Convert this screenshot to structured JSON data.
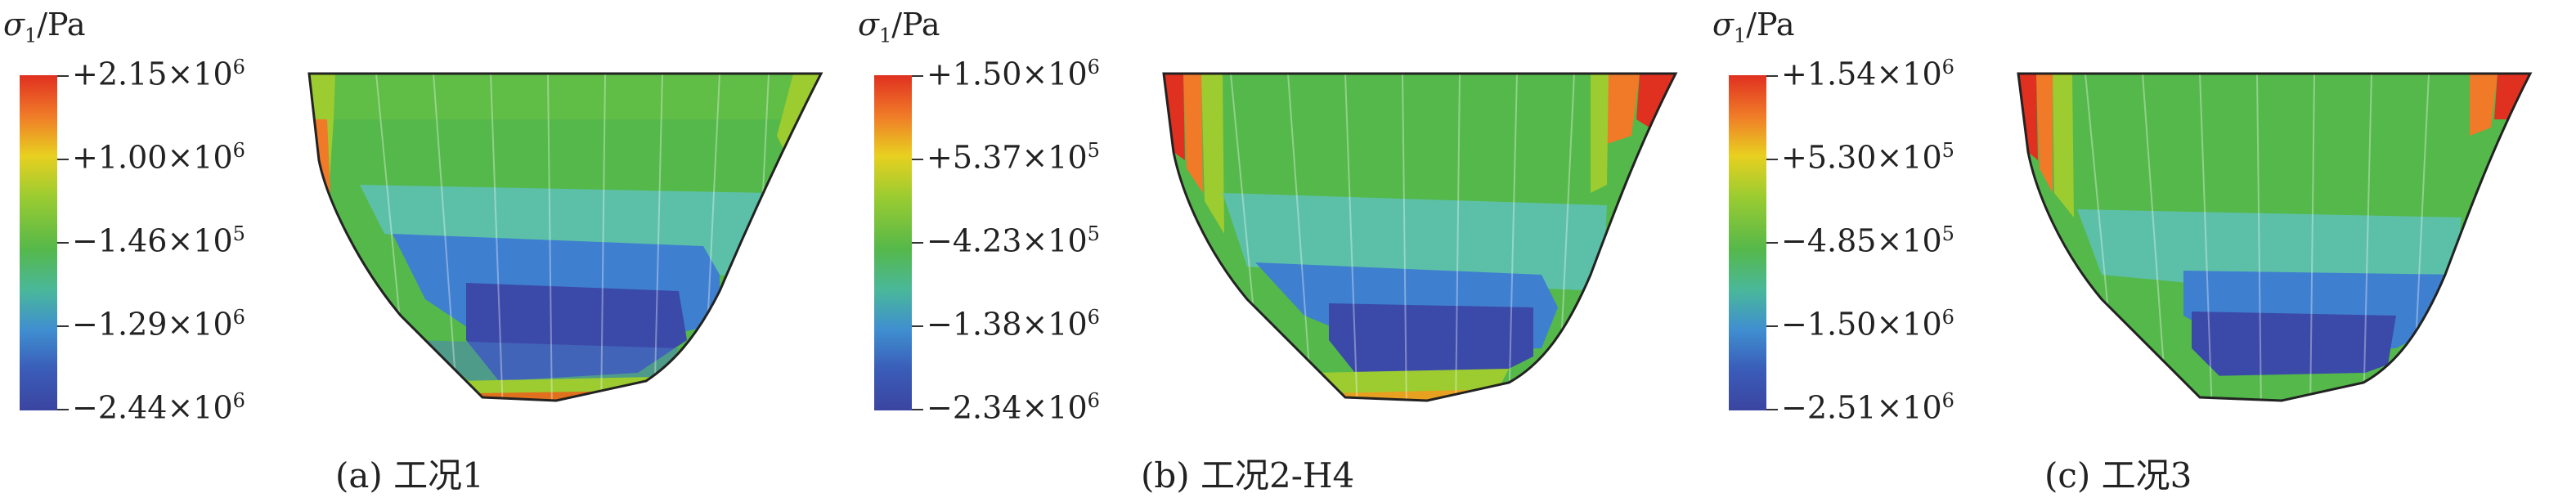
{
  "legend_title": {
    "symbol": "σ",
    "sub": "1",
    "unit": "/Pa"
  },
  "panels": [
    {
      "caption": "(a) 工况1",
      "ticks": [
        {
          "text": "+2.15×10",
          "exp": "6"
        },
        {
          "text": "+1.00×10",
          "exp": "6"
        },
        {
          "text": "−1.46×10",
          "exp": "5"
        },
        {
          "text": "−1.29×10",
          "exp": "6"
        },
        {
          "text": "−2.44×10",
          "exp": "6"
        }
      ]
    },
    {
      "caption": "(b) 工况2-H4",
      "ticks": [
        {
          "text": "+1.50×10",
          "exp": "6"
        },
        {
          "text": "+5.37×10",
          "exp": "5"
        },
        {
          "text": "−4.23×10",
          "exp": "5"
        },
        {
          "text": "−1.38×10",
          "exp": "6"
        },
        {
          "text": "−2.34×10",
          "exp": "6"
        }
      ]
    },
    {
      "caption": "(c) 工况3",
      "ticks": [
        {
          "text": "+1.54×10",
          "exp": "6"
        },
        {
          "text": "+5.30×10",
          "exp": "5"
        },
        {
          "text": "−4.85×10",
          "exp": "5"
        },
        {
          "text": "−1.50×10",
          "exp": "6"
        },
        {
          "text": "−2.51×10",
          "exp": "6"
        }
      ]
    }
  ],
  "colors": {
    "red": "#e03020",
    "orange": "#f07a28",
    "yellow": "#e8d020",
    "light_green": "#9ccc30",
    "green": "#55b84a",
    "teal": "#5cc0a8",
    "blue": "#3f7fcf",
    "dark_blue": "#3b4aa8"
  }
}
